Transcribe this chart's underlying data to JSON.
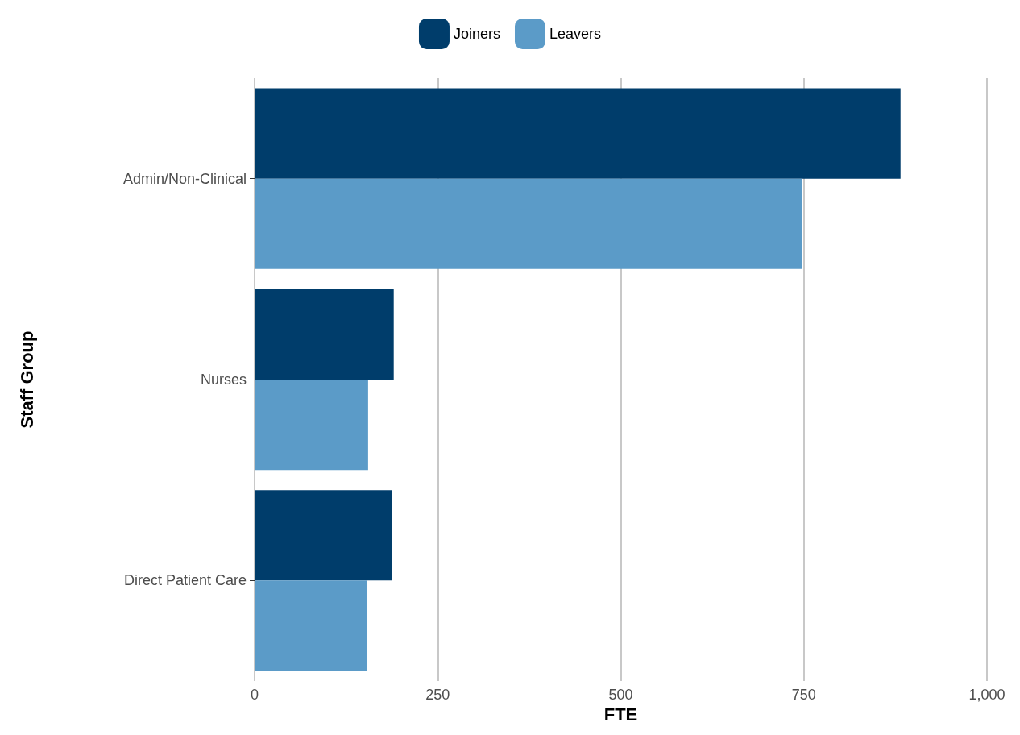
{
  "chart_data": {
    "type": "bar",
    "orientation": "horizontal",
    "xlabel": "FTE",
    "ylabel": "Staff Group",
    "categories": [
      "Admin/Non-Clinical",
      "Nurses",
      "Direct Patient Care"
    ],
    "series": [
      {
        "name": "Joiners",
        "color": "#003d6b",
        "values": [
          882,
          190,
          188
        ]
      },
      {
        "name": "Leavers",
        "color": "#5b9bc8",
        "values": [
          747,
          155,
          154
        ]
      }
    ],
    "xlim": [
      0,
      1000
    ],
    "xticks": [
      0,
      250,
      500,
      750,
      {
        "value": 1000,
        "label": "1,000"
      }
    ],
    "grid": "x",
    "legend": "top"
  }
}
